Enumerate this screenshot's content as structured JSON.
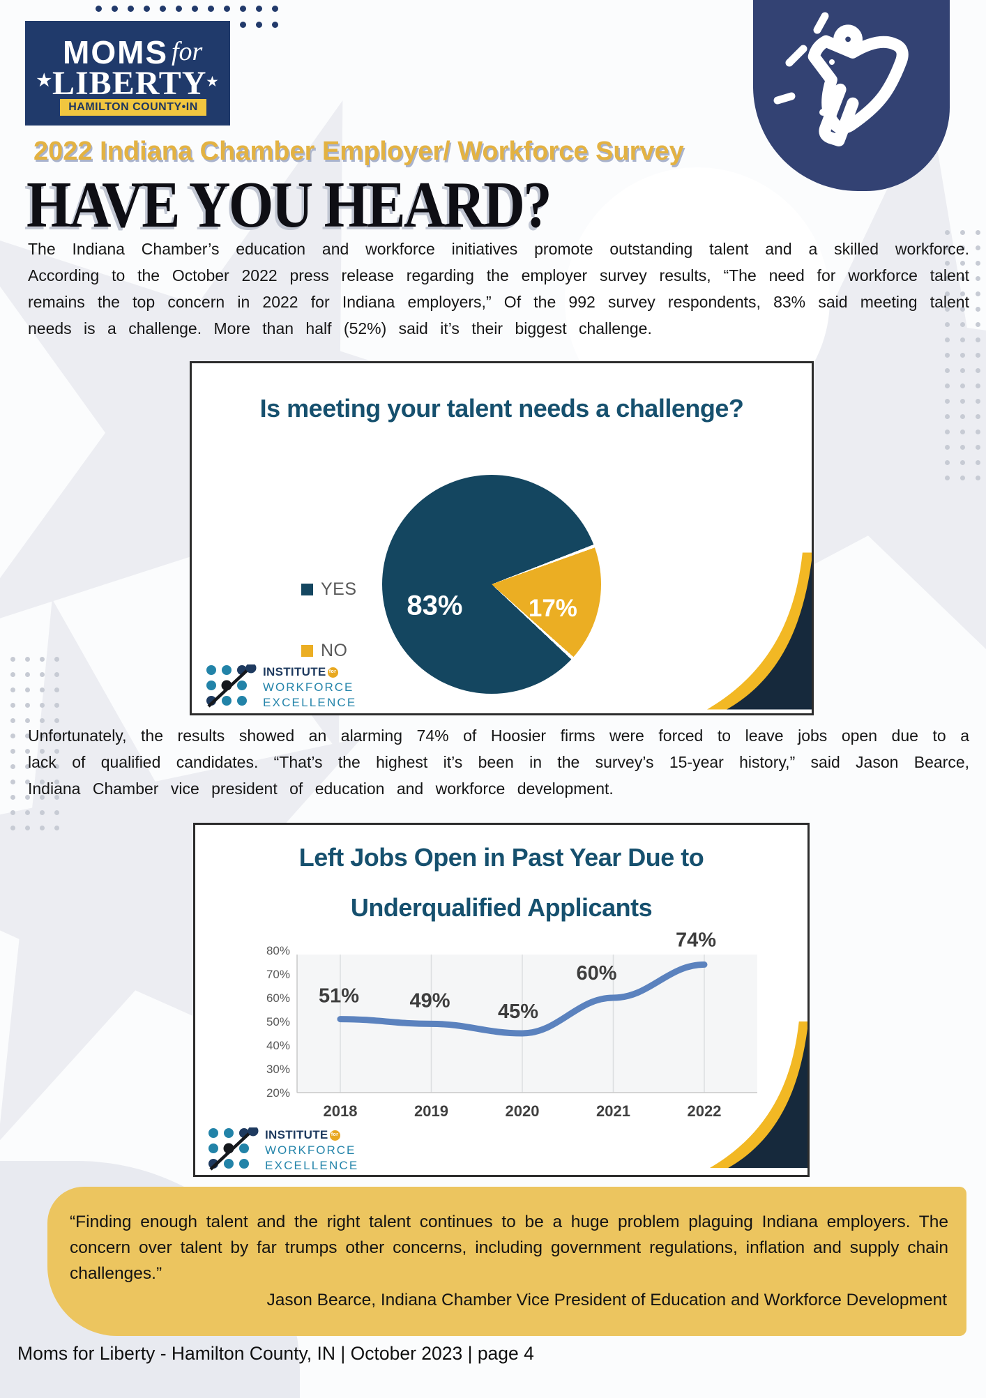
{
  "header": {
    "logo": {
      "moms": "MOMS",
      "for": "for",
      "liberty": "LIBERTY",
      "star_left": "★",
      "star_right": "★",
      "banner": "HAMILTON COUNTY•IN"
    },
    "survey_title": "2022 Indiana Chamber Employer/ Workforce Survey",
    "headline": "HAVE YOU HEARD?"
  },
  "intro_paragraph": "The Indiana Chamber’s education and workforce initiatives promote outstanding talent and a skilled workforce. According to the October 2022 press release regarding the employer survey results, “The need for workforce talent remains the top concern in 2022 for Indiana employers,” Of the 992 survey respondents, 83% said meeting talent needs is a challenge. More than half (52%) said it’s their biggest challenge.",
  "middle_paragraph": "Unfortunately, the results showed an alarming 74% of Hoosier firms were forced to leave jobs open due to a lack of qualified candidates. “That’s the highest it’s been in the survey’s 15-year history,” said Jason Bearce, Indiana Chamber vice president of education and workforce development.",
  "quote": {
    "text": "“Finding enough talent and the right talent continues to be a huge problem plaguing Indiana employers. The concern over talent by far trumps other concerns, including government regulations, inflation and supply chain challenges.”",
    "attribution": "Jason Bearce, Indiana Chamber Vice President of Education and Workforce Development"
  },
  "footer": "Moms for Liberty - Hamilton County, IN | October 2023 | page 4",
  "iwe_logo": {
    "line1": "INSTITUTE",
    "for": "for",
    "line2": "WORKFORCE",
    "line3": "EXCELLENCE"
  },
  "colors": {
    "navy_logo": "#203a6b",
    "badge_blue": "#334273",
    "gold": "#e3b242",
    "quote_gold": "#ecc55f",
    "pie_navy": "#144660",
    "pie_gold": "#ebae23",
    "chart_title_teal": "#16506e",
    "line_blue": "#5b82be",
    "swoosh_navy": "#16293c",
    "swoosh_gold": "#f2b824"
  },
  "chart_data": [
    {
      "type": "pie",
      "title": "Is meeting your talent needs a challenge?",
      "legend": [
        "YES",
        "NO"
      ],
      "values": [
        83,
        17
      ],
      "labels": [
        "83%",
        "17%"
      ],
      "colors": [
        "#144660",
        "#ebae23"
      ],
      "legend_position": "left",
      "source": "INSTITUTE for WORKFORCE EXCELLENCE"
    },
    {
      "type": "line",
      "title": "Left Jobs Open in Past Year Due to Underqualified Applicants",
      "title_lines": [
        "Left Jobs Open in Past Year Due to",
        "Underqualified Applicants"
      ],
      "categories": [
        "2018",
        "2019",
        "2020",
        "2021",
        "2022"
      ],
      "values": [
        51,
        49,
        45,
        60,
        74
      ],
      "data_labels": [
        "51%",
        "49%",
        "45%",
        "60%",
        "74%"
      ],
      "y_ticks": [
        "80%",
        "70%",
        "60%",
        "50%",
        "40%",
        "30%",
        "20%"
      ],
      "ylim": [
        20,
        80
      ],
      "grid": true,
      "legend_position": "none",
      "line_color": "#5b82be",
      "source": "INSTITUTE for WORKFORCE EXCELLENCE"
    }
  ]
}
